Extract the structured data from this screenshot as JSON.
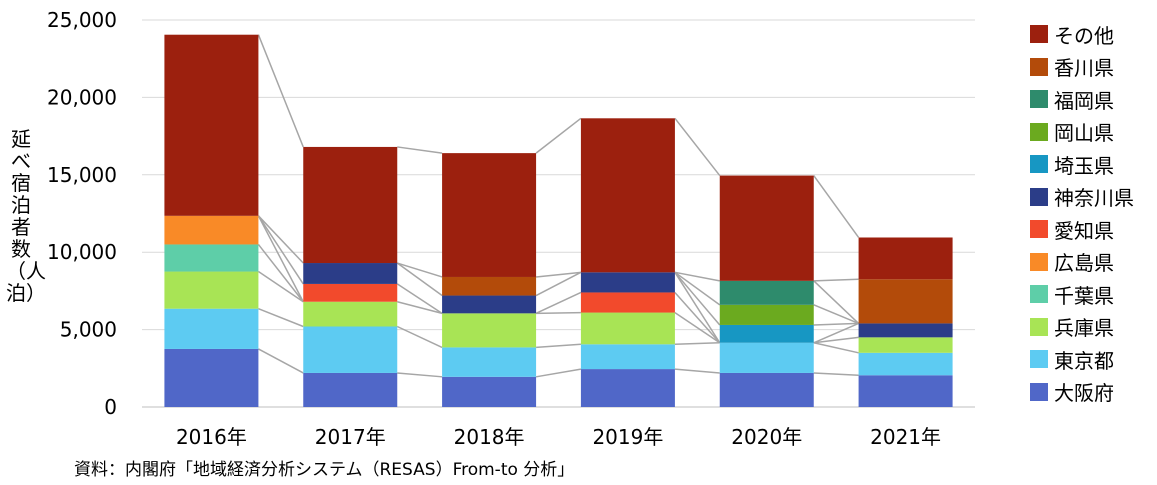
{
  "chart_data": {
    "type": "bar",
    "stacked": true,
    "categories": [
      "2016年",
      "2017年",
      "2018年",
      "2019年",
      "2020年",
      "2021年"
    ],
    "series": [
      {
        "name": "大阪府",
        "color": "#5067C8",
        "values": [
          3750,
          2200,
          1950,
          2450,
          2200,
          2050
        ]
      },
      {
        "name": "東京都",
        "color": "#5DCBF2",
        "values": [
          2600,
          3000,
          1900,
          1600,
          1950,
          1450
        ]
      },
      {
        "name": "兵庫県",
        "color": "#A8E455",
        "values": [
          2400,
          1600,
          2200,
          2050,
          0,
          1000
        ]
      },
      {
        "name": "千葉県",
        "color": "#5ECEA8",
        "values": [
          1750,
          0,
          0,
          0,
          0,
          0
        ]
      },
      {
        "name": "広島県",
        "color": "#F98A27",
        "values": [
          1850,
          0,
          0,
          0,
          0,
          0
        ]
      },
      {
        "name": "愛知県",
        "color": "#F24A2C",
        "values": [
          0,
          1150,
          0,
          1300,
          0,
          0
        ]
      },
      {
        "name": "神奈川県",
        "color": "#2B3D88",
        "values": [
          0,
          1350,
          1150,
          1300,
          0,
          900
        ]
      },
      {
        "name": "埼玉県",
        "color": "#1797C3",
        "values": [
          0,
          0,
          0,
          0,
          1150,
          0
        ]
      },
      {
        "name": "岡山県",
        "color": "#6BAA1F",
        "values": [
          0,
          0,
          0,
          0,
          1300,
          0
        ]
      },
      {
        "name": "福岡県",
        "color": "#2E8B6C",
        "values": [
          0,
          0,
          0,
          0,
          1550,
          0
        ]
      },
      {
        "name": "香川県",
        "color": "#B34B0A",
        "values": [
          0,
          0,
          1200,
          0,
          0,
          2850
        ]
      },
      {
        "name": "その他",
        "color": "#9C200E",
        "values": [
          11700,
          7500,
          8000,
          9950,
          6800,
          2700
        ]
      }
    ],
    "ylabel": "延べ宿泊者数（人泊）",
    "ylim": [
      0,
      25000
    ],
    "yticks": [
      0,
      5000,
      10000,
      15000,
      20000,
      25000
    ],
    "ytick_labels": [
      "0",
      "5,000",
      "10,000",
      "15,000",
      "20,000",
      "25,000"
    ],
    "grid": true,
    "legend_position": "right",
    "series_lines": true
  },
  "legend_order": [
    "その他",
    "香川県",
    "福岡県",
    "岡山県",
    "埼玉県",
    "神奈川県",
    "愛知県",
    "広島県",
    "千葉県",
    "兵庫県",
    "東京都",
    "大阪府"
  ],
  "source_text": "資料：内閣府「地域経済分析システム（RESAS）From-to 分析」"
}
